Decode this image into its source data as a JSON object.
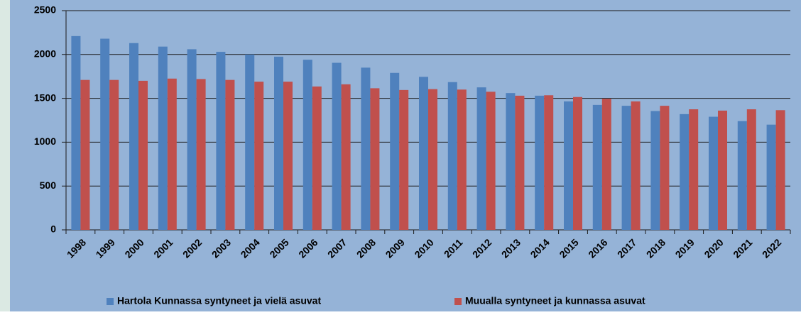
{
  "chart_data": {
    "type": "bar",
    "categories": [
      "1998",
      "1999",
      "2000",
      "2001",
      "2002",
      "2003",
      "2004",
      "2005",
      "2006",
      "2007",
      "2008",
      "2009",
      "2010",
      "2011",
      "2012",
      "2013",
      "2014",
      "2015",
      "2016",
      "2017",
      "2018",
      "2019",
      "2020",
      "2021",
      "2022"
    ],
    "series": [
      {
        "name": "Hartola Kunnassa syntyneet ja vielä asuvat",
        "color": "#4f81bd",
        "values": [
          2210,
          2180,
          2130,
          2090,
          2060,
          2030,
          2000,
          1975,
          1940,
          1905,
          1850,
          1790,
          1745,
          1685,
          1625,
          1560,
          1530,
          1465,
          1425,
          1415,
          1355,
          1320,
          1290,
          1240,
          1200
        ]
      },
      {
        "name": "Muualla syntyneet ja kunnassa asuvat",
        "color": "#c0504d",
        "values": [
          1710,
          1710,
          1700,
          1725,
          1720,
          1710,
          1690,
          1690,
          1635,
          1660,
          1615,
          1595,
          1605,
          1600,
          1575,
          1530,
          1535,
          1515,
          1495,
          1465,
          1415,
          1375,
          1360,
          1375,
          1365
        ]
      }
    ],
    "ylim": [
      0,
      2500
    ],
    "yticks": [
      0,
      500,
      1000,
      1500,
      2000,
      2500
    ],
    "grid": true,
    "legend": "bottom"
  }
}
